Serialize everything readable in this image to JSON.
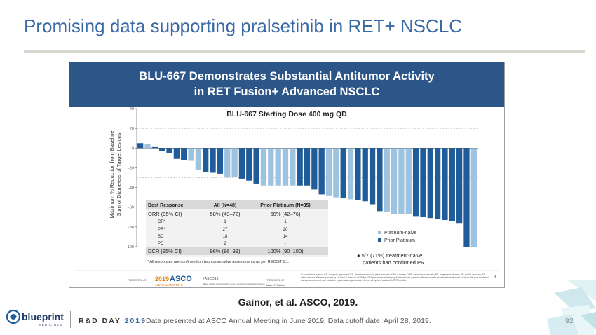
{
  "slide": {
    "title": "Promising data supporting pralsetinib in RET+ NSCLC",
    "caption": "Gainor, et al. ASCO, 2019.",
    "footer_event": "R&D DAY",
    "footer_year": "2019",
    "footer_note": "Data presented at ASCO Annual Meeting in June 2019. Data cutoff date: April 28, 2019.",
    "page_number": "92",
    "logo_text": "blueprint",
    "logo_subtext": "MEDICINES"
  },
  "embedded_slide": {
    "header_line1": "BLU-667 Demonstrates Substantial Antitumor Activity",
    "header_line2": "in RET Fusion+ Advanced NSCLC",
    "chart_title": "BLU-667 Starting Dose 400 mg QD",
    "table": {
      "headers": [
        "Best Response",
        "All (N=48)",
        "Prior Platinum (N=35)"
      ],
      "rows": [
        [
          "ORR (95% CI)",
          "58% (43–72)",
          "60% (42–76)"
        ],
        [
          "CR*",
          "1",
          "1"
        ],
        [
          "PR*",
          "27",
          "20"
        ],
        [
          "SD",
          "18",
          "14"
        ],
        [
          "PD",
          "2",
          "-"
        ],
        [
          "DCR (95% CI)",
          "96% (86–99)",
          "100% (90–100)"
        ]
      ],
      "footnote": "* All responses are confirmed on two consecutive assessments as per RECIST 1.1."
    },
    "legend": [
      "Platinum-naive",
      "Prior Platinum"
    ],
    "note_line1": "● 5/7 (71%) treatment-naive",
    "note_line2": "patients had confirmed PR",
    "embedded_page_number": "8",
    "presented_at": "PRESENTED AT:",
    "asco_year": "2019",
    "asco_word": "ASCO",
    "asco_sub": "ANNUAL MEETING",
    "hashtag": "#ASCO19",
    "slide_permission": "Slides are the property of the author, permission required for reuse.",
    "presented_by": "PRESENTED BY:",
    "presenter": "Justin F. Gainor",
    "abbrev_note": "CI, confidence interval; CR, complete response; DCR, disease control rate (best response of SD or better); ORR, overall response rate; PD, progressive disease; PR, partial response; SD, stable disease. Patients enrolled by 14 Nov 18; data cut-off 28 Apr 19. Response-evaluable population includes patients with measurable disease at baseline and ≥1 evaluable post-treatment disease assessment, and excludes 4 patients who previously received ≥1 cycle of a selective RET inhibitor."
  },
  "chart_data": {
    "type": "bar",
    "title": "BLU-667 Starting Dose 400 mg QD",
    "ylabel": "Maximum % Reduction from Baseline Sum of Diameters of Target Lesions",
    "xlabel": "",
    "ylim": [
      -100,
      40
    ],
    "yticks": [
      40,
      20,
      0,
      -20,
      -40,
      -60,
      -80,
      -100
    ],
    "gridlines": [
      20,
      -30
    ],
    "series": [
      {
        "name": "Platinum-naive",
        "color": "#9dc3e0"
      },
      {
        "name": "Prior Platinum",
        "color": "#1f5c99"
      }
    ],
    "bars": [
      {
        "value": 5,
        "series": 1
      },
      {
        "value": 4,
        "series": 0
      },
      {
        "value": 1,
        "series": 1
      },
      {
        "value": -3,
        "series": 1
      },
      {
        "value": -5,
        "series": 1
      },
      {
        "value": -11,
        "series": 1
      },
      {
        "value": -12,
        "series": 1
      },
      {
        "value": -13,
        "series": 0
      },
      {
        "value": -22,
        "series": 0
      },
      {
        "value": -24,
        "series": 1
      },
      {
        "value": -25,
        "series": 1
      },
      {
        "value": -26,
        "series": 1
      },
      {
        "value": -29,
        "series": 0
      },
      {
        "value": -29,
        "series": 0
      },
      {
        "value": -31,
        "series": 1
      },
      {
        "value": -33,
        "series": 1
      },
      {
        "value": -36,
        "series": 1
      },
      {
        "value": -38,
        "series": 0
      },
      {
        "value": -38,
        "series": 0
      },
      {
        "value": -38,
        "series": 0
      },
      {
        "value": -38,
        "series": 0
      },
      {
        "value": -38,
        "series": 0
      },
      {
        "value": -38,
        "series": 1
      },
      {
        "value": -38,
        "series": 1
      },
      {
        "value": -42,
        "series": 1
      },
      {
        "value": -47,
        "series": 1
      },
      {
        "value": -48,
        "series": 0
      },
      {
        "value": -50,
        "series": 0
      },
      {
        "value": -51,
        "series": 1
      },
      {
        "value": -52,
        "series": 0
      },
      {
        "value": -53,
        "series": 1
      },
      {
        "value": -54,
        "series": 1
      },
      {
        "value": -57,
        "series": 1
      },
      {
        "value": -64,
        "series": 1
      },
      {
        "value": -65,
        "series": 0
      },
      {
        "value": -67,
        "series": 0
      },
      {
        "value": -67,
        "series": 0
      },
      {
        "value": -67,
        "series": 0
      },
      {
        "value": -69,
        "series": 1
      },
      {
        "value": -70,
        "series": 1
      },
      {
        "value": -71,
        "series": 1
      },
      {
        "value": -72,
        "series": 1
      },
      {
        "value": -73,
        "series": 1
      },
      {
        "value": -74,
        "series": 1
      },
      {
        "value": -76,
        "series": 1
      },
      {
        "value": -100,
        "series": 1
      },
      {
        "value": -100,
        "series": 0
      }
    ]
  },
  "colors": {
    "title": "#3a6aa6",
    "header_band": "#2c5588",
    "naive": "#9dc3e0",
    "prior": "#1f5c99"
  }
}
